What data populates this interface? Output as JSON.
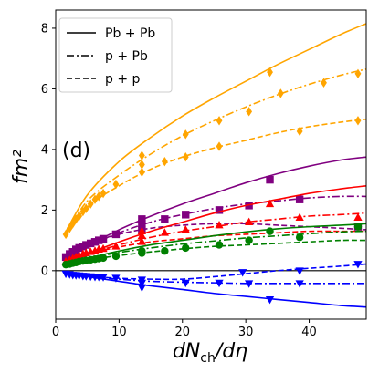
{
  "chart_data": {
    "type": "line",
    "panel_label": "(d)",
    "xlabel": "dN_ch/dη",
    "ylabel": "fm²",
    "xlim": [
      0,
      49
    ],
    "ylim": [
      -1.6,
      8.6
    ],
    "xticks": [
      0,
      10,
      20,
      30,
      40
    ],
    "yticks": [
      0,
      2,
      4,
      6,
      8
    ],
    "grid": false,
    "legend_position": "top-left",
    "legend": [
      {
        "label": "Pb + Pb",
        "style": "solid"
      },
      {
        "label": "p + Pb",
        "style": "dashdot"
      },
      {
        "label": "p + p",
        "style": "dashed"
      }
    ],
    "colors": {
      "orange": "#ffa500",
      "purple": "#800080",
      "red": "#ff0000",
      "green": "#008000",
      "blue": "#0000ff"
    },
    "series": [
      {
        "color": "orange",
        "system": "Pb + Pb",
        "style": "solid",
        "marker": "diamond",
        "fit": [
          [
            1.5,
            1.25
          ],
          [
            5,
            2.5
          ],
          [
            10,
            3.6
          ],
          [
            15,
            4.4
          ],
          [
            20,
            5.1
          ],
          [
            25,
            5.7
          ],
          [
            30,
            6.25
          ],
          [
            35,
            6.8
          ],
          [
            40,
            7.3
          ],
          [
            45,
            7.8
          ],
          [
            49,
            8.15
          ]
        ],
        "points": [
          [
            13.6,
            3.8
          ],
          [
            33.8,
            6.55
          ]
        ]
      },
      {
        "color": "orange",
        "system": "p + Pb",
        "style": "dashdot",
        "marker": "diamond",
        "fit": [
          [
            1.5,
            1.2
          ],
          [
            5,
            2.3
          ],
          [
            10,
            3.15
          ],
          [
            15,
            3.85
          ],
          [
            20,
            4.45
          ],
          [
            25,
            4.95
          ],
          [
            30,
            5.4
          ],
          [
            35,
            5.8
          ],
          [
            40,
            6.15
          ],
          [
            45,
            6.45
          ],
          [
            49,
            6.65
          ]
        ],
        "points": [
          [
            13.6,
            3.5
          ],
          [
            20.5,
            4.5
          ],
          [
            25.8,
            4.95
          ],
          [
            30.5,
            5.25
          ],
          [
            35.5,
            5.85
          ],
          [
            42.3,
            6.2
          ],
          [
            47.7,
            6.5
          ]
        ]
      },
      {
        "color": "orange",
        "system": "p + p",
        "style": "dashed",
        "marker": "diamond",
        "fit": [
          [
            1.5,
            1.15
          ],
          [
            5,
            2.1
          ],
          [
            10,
            2.8
          ],
          [
            15,
            3.35
          ],
          [
            20,
            3.75
          ],
          [
            25,
            4.05
          ],
          [
            30,
            4.3
          ],
          [
            35,
            4.55
          ],
          [
            40,
            4.75
          ],
          [
            45,
            4.9
          ],
          [
            49,
            5.0
          ]
        ],
        "points": [
          [
            1.6,
            1.2
          ],
          [
            2.2,
            1.4
          ],
          [
            2.7,
            1.55
          ],
          [
            3.2,
            1.7
          ],
          [
            3.7,
            1.8
          ],
          [
            4.3,
            1.95
          ],
          [
            4.8,
            2.05
          ],
          [
            5.5,
            2.2
          ],
          [
            6.2,
            2.35
          ],
          [
            6.8,
            2.45
          ],
          [
            7.5,
            2.55
          ],
          [
            9.5,
            2.85
          ],
          [
            13.6,
            3.25
          ],
          [
            17.2,
            3.6
          ],
          [
            20.5,
            3.75
          ],
          [
            25.8,
            4.1
          ],
          [
            38.5,
            4.6
          ],
          [
            47.7,
            4.95
          ]
        ]
      },
      {
        "color": "purple",
        "system": "Pb + Pb",
        "style": "solid",
        "marker": "square",
        "fit": [
          [
            1.5,
            0.3
          ],
          [
            5,
            0.8
          ],
          [
            10,
            1.35
          ],
          [
            15,
            1.8
          ],
          [
            20,
            2.2
          ],
          [
            25,
            2.55
          ],
          [
            30,
            2.9
          ],
          [
            35,
            3.2
          ],
          [
            40,
            3.45
          ],
          [
            45,
            3.65
          ],
          [
            49,
            3.75
          ]
        ],
        "points": [
          [
            13.6,
            1.7
          ],
          [
            33.8,
            3.0
          ]
        ]
      },
      {
        "color": "purple",
        "system": "p + Pb",
        "style": "dashdot",
        "marker": "square",
        "fit": [
          [
            1.5,
            0.35
          ],
          [
            5,
            0.8
          ],
          [
            10,
            1.25
          ],
          [
            15,
            1.6
          ],
          [
            20,
            1.85
          ],
          [
            25,
            2.05
          ],
          [
            30,
            2.2
          ],
          [
            35,
            2.3
          ],
          [
            40,
            2.4
          ],
          [
            45,
            2.45
          ],
          [
            49,
            2.45
          ]
        ],
        "points": [
          [
            13.6,
            1.55
          ],
          [
            17.2,
            1.7
          ],
          [
            20.5,
            1.85
          ],
          [
            25.8,
            2.0
          ],
          [
            30.5,
            2.15
          ],
          [
            38.5,
            2.35
          ],
          [
            47.7,
            1.45
          ]
        ]
      },
      {
        "color": "purple",
        "system": "p + p",
        "style": "dashed",
        "marker": "square",
        "fit": [
          [
            1.5,
            0.45
          ],
          [
            5,
            0.85
          ],
          [
            10,
            1.2
          ],
          [
            15,
            1.4
          ],
          [
            20,
            1.5
          ],
          [
            25,
            1.55
          ],
          [
            30,
            1.55
          ],
          [
            35,
            1.5
          ],
          [
            40,
            1.45
          ],
          [
            45,
            1.4
          ],
          [
            49,
            1.35
          ]
        ],
        "points": [
          [
            1.6,
            0.45
          ],
          [
            2.2,
            0.55
          ],
          [
            2.7,
            0.62
          ],
          [
            3.2,
            0.7
          ],
          [
            3.7,
            0.75
          ],
          [
            4.3,
            0.8
          ],
          [
            4.8,
            0.85
          ],
          [
            5.5,
            0.9
          ],
          [
            6.2,
            0.95
          ],
          [
            6.8,
            1.0
          ],
          [
            7.5,
            1.05
          ],
          [
            9.5,
            1.2
          ],
          [
            13.6,
            1.35
          ]
        ]
      },
      {
        "color": "red",
        "system": "Pb + Pb",
        "style": "solid",
        "marker": "triangle-up",
        "fit": [
          [
            1.5,
            0.2
          ],
          [
            5,
            0.55
          ],
          [
            10,
            0.95
          ],
          [
            15,
            1.3
          ],
          [
            20,
            1.6
          ],
          [
            25,
            1.9
          ],
          [
            30,
            2.15
          ],
          [
            35,
            2.35
          ],
          [
            40,
            2.55
          ],
          [
            45,
            2.7
          ],
          [
            49,
            2.8
          ]
        ],
        "points": [
          [
            13.6,
            1.3
          ],
          [
            33.8,
            2.2
          ]
        ]
      },
      {
        "color": "red",
        "system": "p + Pb",
        "style": "dashdot",
        "marker": "triangle-up",
        "fit": [
          [
            1.5,
            0.25
          ],
          [
            5,
            0.55
          ],
          [
            10,
            0.85
          ],
          [
            15,
            1.1
          ],
          [
            20,
            1.3
          ],
          [
            25,
            1.45
          ],
          [
            30,
            1.6
          ],
          [
            35,
            1.7
          ],
          [
            40,
            1.8
          ],
          [
            45,
            1.85
          ],
          [
            49,
            1.9
          ]
        ],
        "points": [
          [
            13.6,
            1.15
          ],
          [
            17.2,
            1.25
          ],
          [
            20.5,
            1.35
          ],
          [
            25.8,
            1.5
          ],
          [
            30.5,
            1.6
          ],
          [
            38.5,
            1.75
          ],
          [
            47.7,
            1.75
          ]
        ]
      },
      {
        "color": "red",
        "system": "p + p",
        "style": "dashed",
        "marker": "triangle-up",
        "fit": [
          [
            1.5,
            0.3
          ],
          [
            5,
            0.55
          ],
          [
            10,
            0.78
          ],
          [
            15,
            0.95
          ],
          [
            20,
            1.05
          ],
          [
            25,
            1.15
          ],
          [
            30,
            1.2
          ],
          [
            35,
            1.25
          ],
          [
            40,
            1.3
          ],
          [
            45,
            1.3
          ],
          [
            49,
            1.3
          ]
        ],
        "points": [
          [
            1.6,
            0.3
          ],
          [
            2.2,
            0.35
          ],
          [
            2.7,
            0.4
          ],
          [
            3.2,
            0.45
          ],
          [
            3.7,
            0.5
          ],
          [
            4.3,
            0.55
          ],
          [
            4.8,
            0.58
          ],
          [
            5.5,
            0.62
          ],
          [
            6.2,
            0.65
          ],
          [
            6.8,
            0.7
          ],
          [
            7.5,
            0.72
          ],
          [
            9.5,
            0.8
          ],
          [
            13.6,
            0.95
          ]
        ]
      },
      {
        "color": "green",
        "system": "Pb + Pb",
        "style": "solid",
        "marker": "circle",
        "fit": [
          [
            1.5,
            0.2
          ],
          [
            5,
            0.4
          ],
          [
            10,
            0.65
          ],
          [
            15,
            0.85
          ],
          [
            20,
            1.0
          ],
          [
            25,
            1.15
          ],
          [
            30,
            1.28
          ],
          [
            35,
            1.38
          ],
          [
            40,
            1.45
          ],
          [
            45,
            1.5
          ],
          [
            49,
            1.55
          ]
        ],
        "points": [
          [
            13.6,
            0.65
          ],
          [
            33.8,
            1.3
          ]
        ]
      },
      {
        "color": "green",
        "system": "p + Pb",
        "style": "dashdot",
        "marker": "circle",
        "fit": [
          [
            1.5,
            0.2
          ],
          [
            5,
            0.4
          ],
          [
            10,
            0.6
          ],
          [
            15,
            0.75
          ],
          [
            20,
            0.88
          ],
          [
            25,
            0.98
          ],
          [
            30,
            1.08
          ],
          [
            35,
            1.15
          ],
          [
            40,
            1.22
          ],
          [
            45,
            1.28
          ],
          [
            49,
            1.3
          ]
        ],
        "points": [
          [
            13.6,
            0.6
          ],
          [
            17.2,
            0.65
          ],
          [
            20.5,
            0.75
          ],
          [
            25.8,
            0.85
          ],
          [
            30.5,
            1.0
          ],
          [
            38.5,
            1.1
          ],
          [
            47.7,
            1.45
          ]
        ]
      },
      {
        "color": "green",
        "system": "p + p",
        "style": "dashed",
        "marker": "circle",
        "fit": [
          [
            1.5,
            0.2
          ],
          [
            5,
            0.35
          ],
          [
            10,
            0.5
          ],
          [
            15,
            0.62
          ],
          [
            20,
            0.72
          ],
          [
            25,
            0.8
          ],
          [
            30,
            0.85
          ],
          [
            35,
            0.9
          ],
          [
            40,
            0.95
          ],
          [
            45,
            1.0
          ],
          [
            49,
            1.0
          ]
        ],
        "points": [
          [
            1.6,
            0.2
          ],
          [
            2.2,
            0.22
          ],
          [
            2.7,
            0.25
          ],
          [
            3.2,
            0.27
          ],
          [
            3.7,
            0.3
          ],
          [
            4.3,
            0.32
          ],
          [
            4.8,
            0.34
          ],
          [
            5.5,
            0.36
          ],
          [
            6.2,
            0.38
          ],
          [
            6.8,
            0.4
          ],
          [
            7.5,
            0.42
          ],
          [
            9.5,
            0.48
          ],
          [
            13.6,
            0.58
          ]
        ]
      },
      {
        "color": "blue",
        "system": "Pb + Pb",
        "style": "solid",
        "marker": "triangle-down",
        "fit": [
          [
            1.5,
            -0.1
          ],
          [
            5,
            -0.2
          ],
          [
            10,
            -0.35
          ],
          [
            15,
            -0.5
          ],
          [
            20,
            -0.62
          ],
          [
            25,
            -0.75
          ],
          [
            30,
            -0.85
          ],
          [
            35,
            -0.95
          ],
          [
            40,
            -1.05
          ],
          [
            45,
            -1.15
          ],
          [
            49,
            -1.2
          ]
        ],
        "points": [
          [
            13.6,
            -0.55
          ],
          [
            33.8,
            -0.95
          ]
        ]
      },
      {
        "color": "blue",
        "system": "p + Pb",
        "style": "dashdot",
        "marker": "triangle-down",
        "fit": [
          [
            1.5,
            -0.1
          ],
          [
            5,
            -0.2
          ],
          [
            10,
            -0.28
          ],
          [
            15,
            -0.35
          ],
          [
            20,
            -0.38
          ],
          [
            25,
            -0.4
          ],
          [
            30,
            -0.42
          ],
          [
            35,
            -0.42
          ],
          [
            40,
            -0.42
          ],
          [
            45,
            -0.42
          ],
          [
            49,
            -0.42
          ]
        ],
        "points": [
          [
            13.6,
            -0.4
          ],
          [
            20.5,
            -0.4
          ],
          [
            25.8,
            -0.4
          ],
          [
            30.5,
            -0.42
          ],
          [
            38.5,
            -0.42
          ]
        ]
      },
      {
        "color": "blue",
        "system": "p + p",
        "style": "dashed",
        "marker": "triangle-down",
        "fit": [
          [
            1.5,
            -0.08
          ],
          [
            5,
            -0.18
          ],
          [
            10,
            -0.25
          ],
          [
            15,
            -0.28
          ],
          [
            20,
            -0.28
          ],
          [
            25,
            -0.2
          ],
          [
            30,
            -0.1
          ],
          [
            35,
            0.0
          ],
          [
            40,
            0.08
          ],
          [
            45,
            0.15
          ],
          [
            49,
            0.22
          ]
        ],
        "points": [
          [
            1.6,
            -0.1
          ],
          [
            2.2,
            -0.12
          ],
          [
            2.7,
            -0.14
          ],
          [
            3.2,
            -0.15
          ],
          [
            3.7,
            -0.16
          ],
          [
            4.3,
            -0.17
          ],
          [
            4.8,
            -0.18
          ],
          [
            5.5,
            -0.19
          ],
          [
            6.2,
            -0.2
          ],
          [
            6.8,
            -0.2
          ],
          [
            7.5,
            -0.21
          ],
          [
            9.5,
            -0.24
          ],
          [
            13.6,
            -0.3
          ],
          [
            29.5,
            -0.05
          ],
          [
            38.5,
            0.0
          ],
          [
            47.7,
            0.22
          ]
        ]
      }
    ]
  }
}
